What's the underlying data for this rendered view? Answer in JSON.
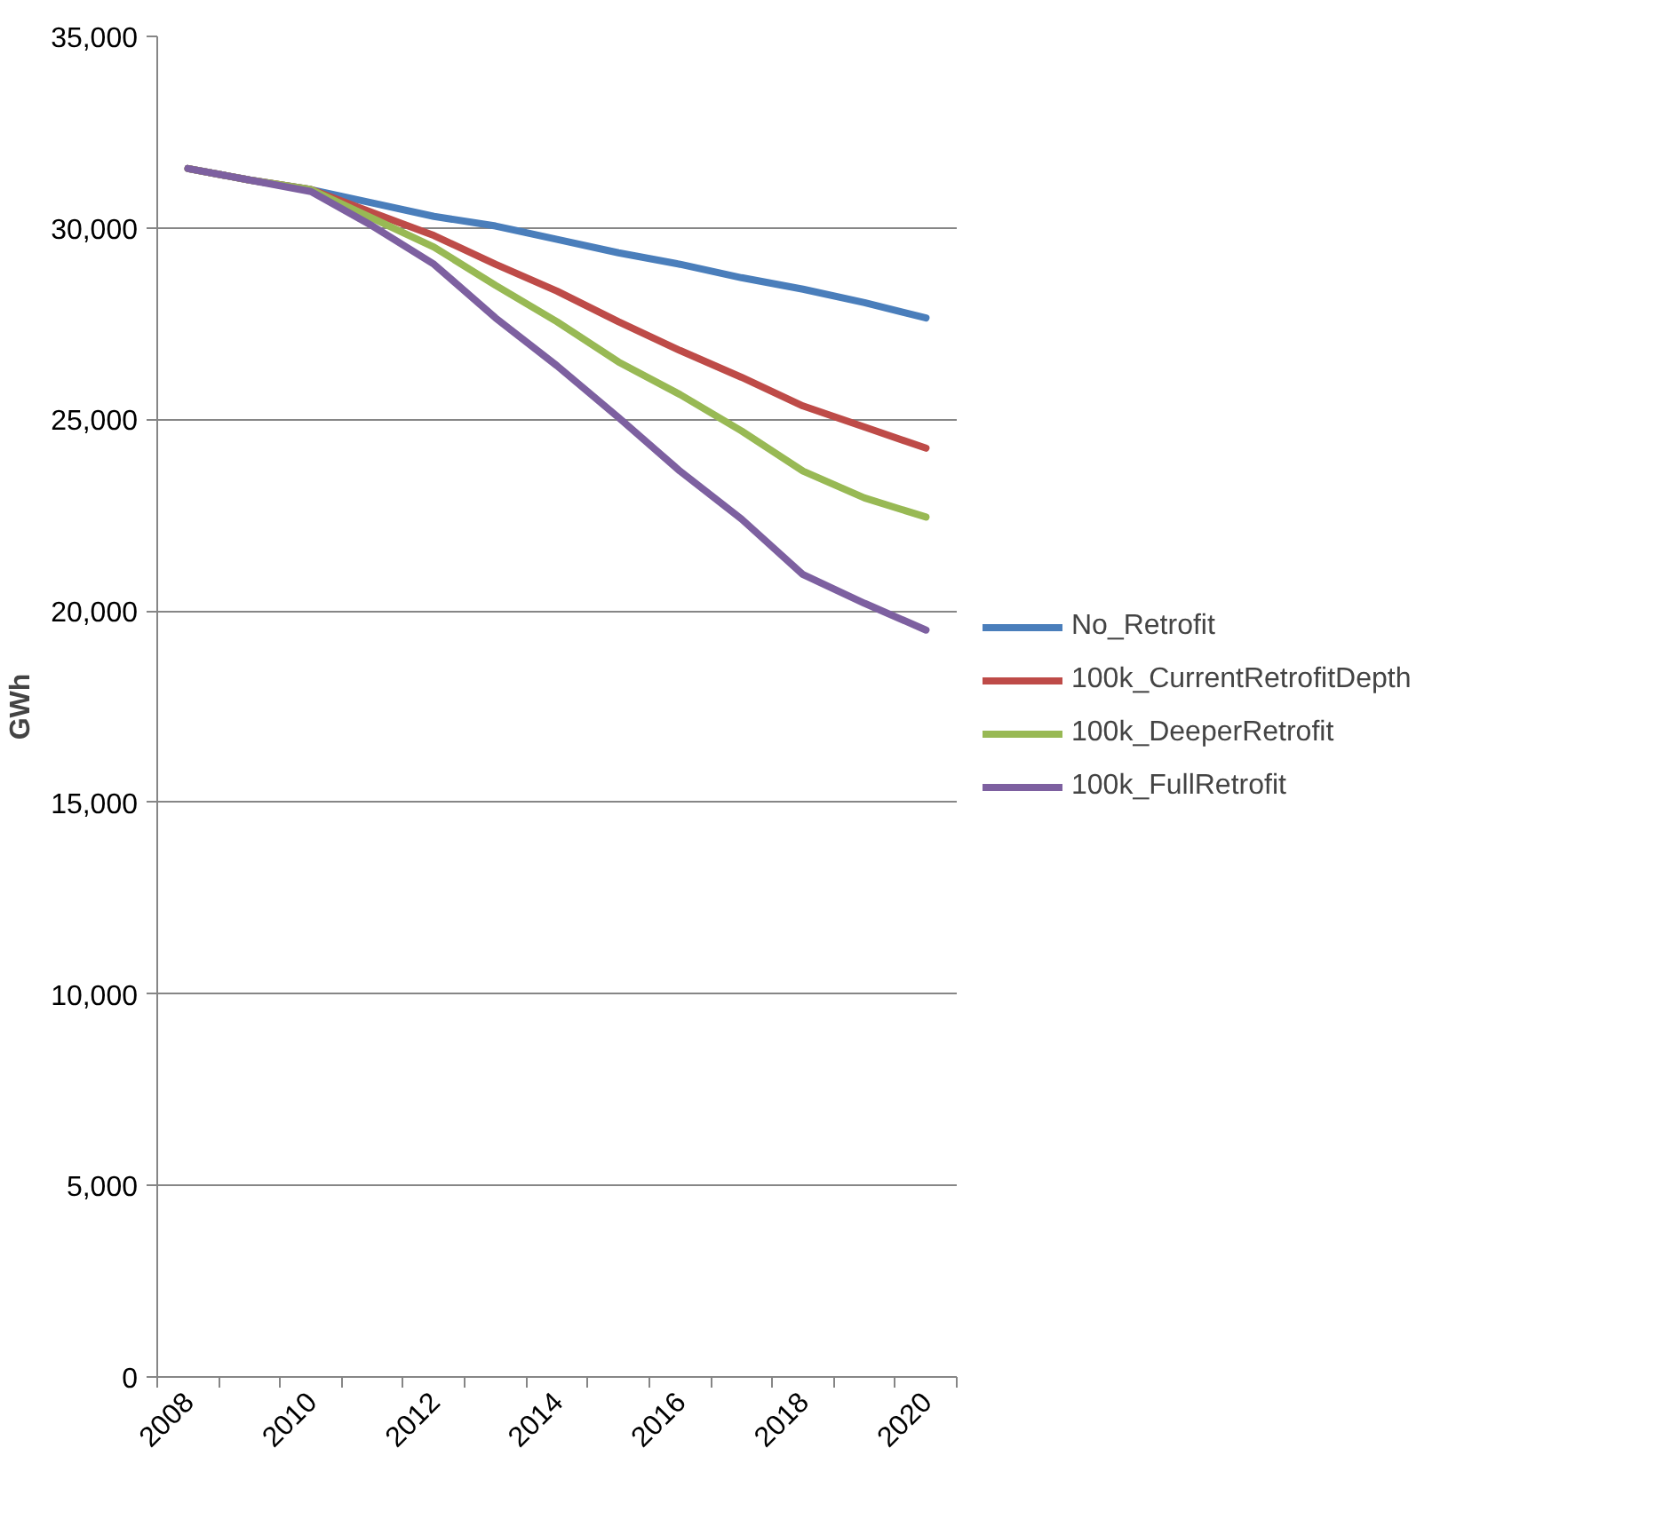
{
  "chart_data": {
    "type": "line",
    "ylabel": "GWh",
    "categories": [
      "2008",
      null,
      "2010",
      null,
      "2012",
      null,
      "2014",
      null,
      "2016",
      null,
      "2018",
      null,
      "2020"
    ],
    "series": [
      {
        "name": "No_Retrofit",
        "color": "#4a7ebb",
        "values": [
          31550,
          31250,
          31000,
          30650,
          30300,
          30050,
          29700,
          29350,
          29050,
          28700,
          28400,
          28050,
          27650
        ]
      },
      {
        "name": "100k_CurrentRetrofitDepth",
        "color": "#be4b48",
        "values": [
          31550,
          31250,
          31000,
          30400,
          29800,
          29050,
          28350,
          27550,
          26800,
          26100,
          25350,
          24800,
          24250
        ]
      },
      {
        "name": "100k_DeeperRetrofit",
        "color": "#98b954",
        "values": [
          31550,
          31250,
          31000,
          30250,
          29500,
          28500,
          27550,
          26500,
          25650,
          24700,
          23650,
          22950,
          22450
        ]
      },
      {
        "name": "100k_FullRetrofit",
        "color": "#7d60a0",
        "values": [
          31550,
          31250,
          30950,
          30050,
          29050,
          27650,
          26400,
          25050,
          23650,
          22400,
          20950,
          20200,
          19500
        ]
      }
    ],
    "ylim": [
      0,
      35000
    ],
    "yticks": [
      {
        "value": 0,
        "label": "0"
      },
      {
        "value": 5000,
        "label": "5,000"
      },
      {
        "value": 10000,
        "label": "10,000"
      },
      {
        "value": 15000,
        "label": "15,000"
      },
      {
        "value": 20000,
        "label": "20,000"
      },
      {
        "value": 25000,
        "label": "25,000"
      },
      {
        "value": 30000,
        "label": "30,000"
      },
      {
        "value": 35000,
        "label": "35,000"
      }
    ],
    "grid": "y",
    "legend": "right",
    "marker": "none",
    "line_style": "solid"
  }
}
